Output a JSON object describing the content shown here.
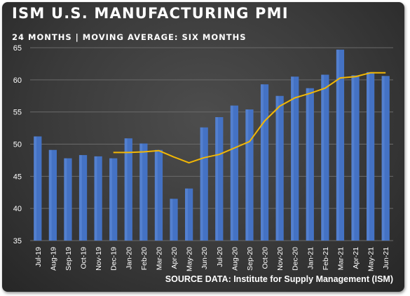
{
  "colors": {
    "background": "#3a3a3a",
    "bar": "#4472c4",
    "bar_highlight": "#6f9ae6",
    "line": "#f2b705",
    "gridline": "#6a6a6a",
    "text": "#ffffff"
  },
  "source_text": "SOURCE DATA: Institute for Supply Management (ISM)",
  "chart_data": {
    "type": "bar",
    "title": "ISM U.S. MANUFACTURING PMI",
    "subtitle": "24 MONTHS | MOVING AVERAGE: SIX MONTHS",
    "categories": [
      "Jul-19",
      "Aug-19",
      "Sep-19",
      "Oct-19",
      "Nov-19",
      "Dec-19",
      "Jan-20",
      "Feb-20",
      "Mar-20",
      "Apr-20",
      "May-20",
      "Jun-20",
      "Jul-20",
      "Aug-20",
      "Sep-20",
      "Oct-20",
      "Nov-20",
      "Dec-20",
      "Jan-21",
      "Feb-21",
      "Mar-21",
      "Apr-21",
      "May-21",
      "Jun-21"
    ],
    "series": [
      {
        "type": "bar",
        "values": [
          51.2,
          49.1,
          47.8,
          48.3,
          48.1,
          47.8,
          50.9,
          50.1,
          49.1,
          41.5,
          43.1,
          52.6,
          54.2,
          56.0,
          55.4,
          59.3,
          57.5,
          60.5,
          58.7,
          60.8,
          64.7,
          60.7,
          61.2,
          60.6
        ]
      },
      {
        "type": "line",
        "values": [
          null,
          null,
          null,
          null,
          null,
          48.7,
          48.7,
          48.8,
          49.0,
          48.0,
          47.1,
          47.9,
          48.4,
          49.4,
          50.4,
          53.6,
          55.9,
          57.2,
          57.9,
          58.7,
          60.3,
          60.5,
          61.1,
          61.1
        ]
      }
    ],
    "xlabel": "",
    "ylabel": "",
    "ylim": [
      35,
      65
    ],
    "yticks": [
      "35",
      "40",
      "45",
      "50",
      "55",
      "60",
      "65"
    ],
    "grid": true,
    "legend": "none"
  }
}
